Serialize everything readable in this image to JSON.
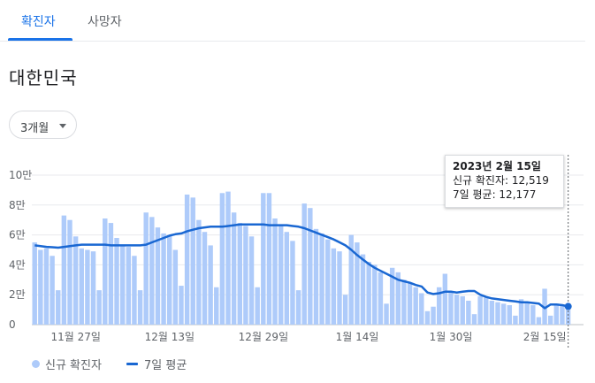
{
  "tabs": [
    {
      "label": "확진자",
      "active": true
    },
    {
      "label": "사망자",
      "active": false
    }
  ],
  "region": "대한민국",
  "range_selector": {
    "label": "3개월",
    "icon": "caret-down-icon"
  },
  "colors": {
    "bar": "#aecbfa",
    "line": "#1967d2",
    "accent": "#1a73e8",
    "grid": "#e8eaed"
  },
  "tooltip": {
    "date": "2023년 2월 15일",
    "new_cases": "신규 확진자: 12,519",
    "avg": "7일 평균: 12,177"
  },
  "legend": {
    "bars": "신규 확진자",
    "line": "7일 평균"
  },
  "chart_data": {
    "type": "bar",
    "ylim": [
      0,
      100000
    ],
    "y_ticks": [
      {
        "value": 0,
        "label": "0"
      },
      {
        "value": 20000,
        "label": "2만"
      },
      {
        "value": 40000,
        "label": "4만"
      },
      {
        "value": 60000,
        "label": "6만"
      },
      {
        "value": 80000,
        "label": "8만"
      },
      {
        "value": 100000,
        "label": "10만"
      }
    ],
    "x_ticks": [
      {
        "index": 7,
        "label": "11월 27일"
      },
      {
        "index": 23,
        "label": "12월 13일"
      },
      {
        "index": 39,
        "label": "12월 29일"
      },
      {
        "index": 55,
        "label": "1월 14일"
      },
      {
        "index": 71,
        "label": "1월 30일"
      },
      {
        "index": 87,
        "label": "2월 15일"
      }
    ],
    "series": [
      {
        "name": "신규 확진자",
        "type": "bar",
        "values": [
          55000,
          50000,
          51000,
          46000,
          23000,
          73000,
          70000,
          59000,
          51000,
          50000,
          49000,
          23000,
          71000,
          68000,
          58000,
          53000,
          52000,
          46000,
          23000,
          75000,
          72000,
          65000,
          61000,
          60000,
          50000,
          26000,
          87000,
          85000,
          70000,
          62000,
          53000,
          25000,
          88000,
          89000,
          75000,
          68000,
          66000,
          59000,
          25000,
          88000,
          88000,
          71000,
          66000,
          62000,
          56000,
          23000,
          81000,
          78000,
          64000,
          61000,
          57000,
          51000,
          49000,
          20000,
          60000,
          55000,
          47000,
          42000,
          40000,
          35000,
          14000,
          38000,
          35000,
          30000,
          28000,
          25000,
          21000,
          9000,
          12000,
          25000,
          34000,
          22000,
          20000,
          19000,
          16000,
          7000,
          19000,
          18000,
          16000,
          15000,
          14000,
          13000,
          6000,
          17000,
          15000,
          13000,
          5000,
          24000,
          6000,
          14000,
          13000,
          12519
        ]
      },
      {
        "name": "7일 평균",
        "type": "line",
        "values": [
          53000,
          52500,
          52000,
          51800,
          51500,
          52000,
          52500,
          53000,
          53500,
          53500,
          53500,
          53500,
          53500,
          53000,
          53000,
          53000,
          53000,
          53000,
          53000,
          53500,
          55000,
          56500,
          58000,
          59500,
          60500,
          61000,
          62500,
          63500,
          64500,
          65000,
          65500,
          65500,
          65500,
          66000,
          66500,
          67000,
          67000,
          67000,
          67000,
          67000,
          66500,
          66500,
          66500,
          66500,
          66000,
          65500,
          64500,
          63000,
          61500,
          60000,
          58500,
          57000,
          55000,
          53000,
          50000,
          46500,
          43500,
          40500,
          38000,
          36000,
          34000,
          32000,
          30000,
          29000,
          28000,
          26500,
          25500,
          21500,
          20500,
          21000,
          22000,
          22000,
          21500,
          22000,
          22500,
          22500,
          20000,
          18500,
          17500,
          17000,
          16500,
          16000,
          15500,
          15000,
          15000,
          14500,
          14000,
          11000,
          13500,
          13500,
          13000,
          12177
        ]
      }
    ]
  }
}
